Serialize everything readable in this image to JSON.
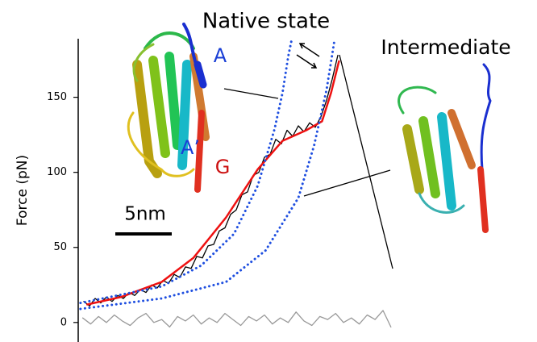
{
  "chart_data": {
    "type": "line",
    "y_label": "Force (pN)",
    "ylim": [
      -13,
      189
    ],
    "yticks": [
      0,
      50,
      100,
      150
    ],
    "xlim": [
      0,
      28
    ],
    "scale_bar": {
      "length": 5,
      "label": "5nm"
    },
    "annotations": [
      {
        "text": "Native state",
        "color": "#000000"
      },
      {
        "text": "Intermediate",
        "color": "#000000"
      },
      {
        "text": "A",
        "color": "#1a3fd6"
      },
      {
        "text": "A’",
        "color": "#1a3fd6"
      },
      {
        "text": "G",
        "color": "#cc1111"
      }
    ],
    "series": [
      {
        "color": "#999999",
        "style": "solid",
        "width": 1.3,
        "x": [
          0.4,
          1.1,
          1.8,
          2.5,
          3.2,
          3.9,
          4.6,
          5.3,
          6,
          6.7,
          7.4,
          8.1,
          8.8,
          9.5,
          10.2,
          10.9,
          11.6,
          12.3,
          13,
          13.7,
          14.4,
          15.1,
          15.8,
          16.5,
          17.2,
          17.9,
          18.6,
          19.3,
          20,
          20.7,
          21.4,
          22.1,
          22.8,
          23.5,
          24.2,
          24.9,
          25.6,
          26.3,
          27,
          27.7
        ],
        "values": [
          3,
          -1,
          4,
          0,
          5,
          1,
          -2,
          3,
          6,
          0,
          2,
          -3,
          4,
          1,
          5,
          -1,
          3,
          0,
          6,
          2,
          -2,
          4,
          1,
          5,
          -1,
          3,
          0,
          7,
          1,
          -2,
          4,
          2,
          6,
          0,
          3,
          -1,
          5,
          2,
          8,
          -3
        ]
      },
      {
        "color": "#000000",
        "style": "solid",
        "width": 1.3,
        "x": [
          0.5,
          1,
          1.5,
          2,
          2.5,
          3,
          3.5,
          4,
          4.5,
          5,
          5.5,
          6,
          6.5,
          7,
          7.5,
          8,
          8.5,
          9,
          9.5,
          10,
          10.5,
          11,
          11.5,
          12,
          12.5,
          13,
          13.5,
          14,
          14.5,
          15,
          15.5,
          16,
          16.5,
          17,
          17.5,
          18,
          18.5,
          19,
          19.5,
          20,
          20.5,
          21,
          21.5,
          22,
          22.5,
          23
        ],
        "values": [
          14,
          11,
          16,
          13,
          17,
          14,
          18,
          16,
          20,
          18,
          22,
          20,
          25,
          23,
          28,
          26,
          32,
          30,
          37,
          36,
          44,
          43,
          51,
          52,
          61,
          63,
          72,
          75,
          85,
          87,
          98,
          100,
          110,
          112,
          122,
          119,
          128,
          124,
          131,
          127,
          133,
          130,
          137,
          148,
          162,
          178
        ]
      },
      {
        "color": "#ee1111",
        "style": "solid",
        "width": 2.5,
        "x": [
          0.8,
          3.8,
          7.4,
          10.2,
          13.1,
          15.9,
          18.1,
          20.2,
          21.6,
          22.4,
          23.1
        ],
        "values": [
          12,
          17,
          27,
          43,
          70,
          102,
          121,
          128,
          134,
          153,
          174
        ]
      },
      {
        "color": "#1f4fe0",
        "style": "dotted",
        "width": 3,
        "x": [
          0.2,
          7.4,
          10.9,
          13.8,
          15.9,
          17.4,
          18.1,
          18.6,
          18.9
        ],
        "values": [
          13,
          24,
          38,
          59,
          91,
          129,
          153,
          177,
          188
        ]
      },
      {
        "color": "#1f4fe0",
        "style": "dotted",
        "width": 3,
        "x": [
          0.2,
          7.4,
          13.1,
          16.6,
          19.5,
          20.9,
          22,
          22.7
        ],
        "values": [
          9,
          16,
          27,
          48,
          83,
          118,
          155,
          188
        ]
      }
    ]
  }
}
